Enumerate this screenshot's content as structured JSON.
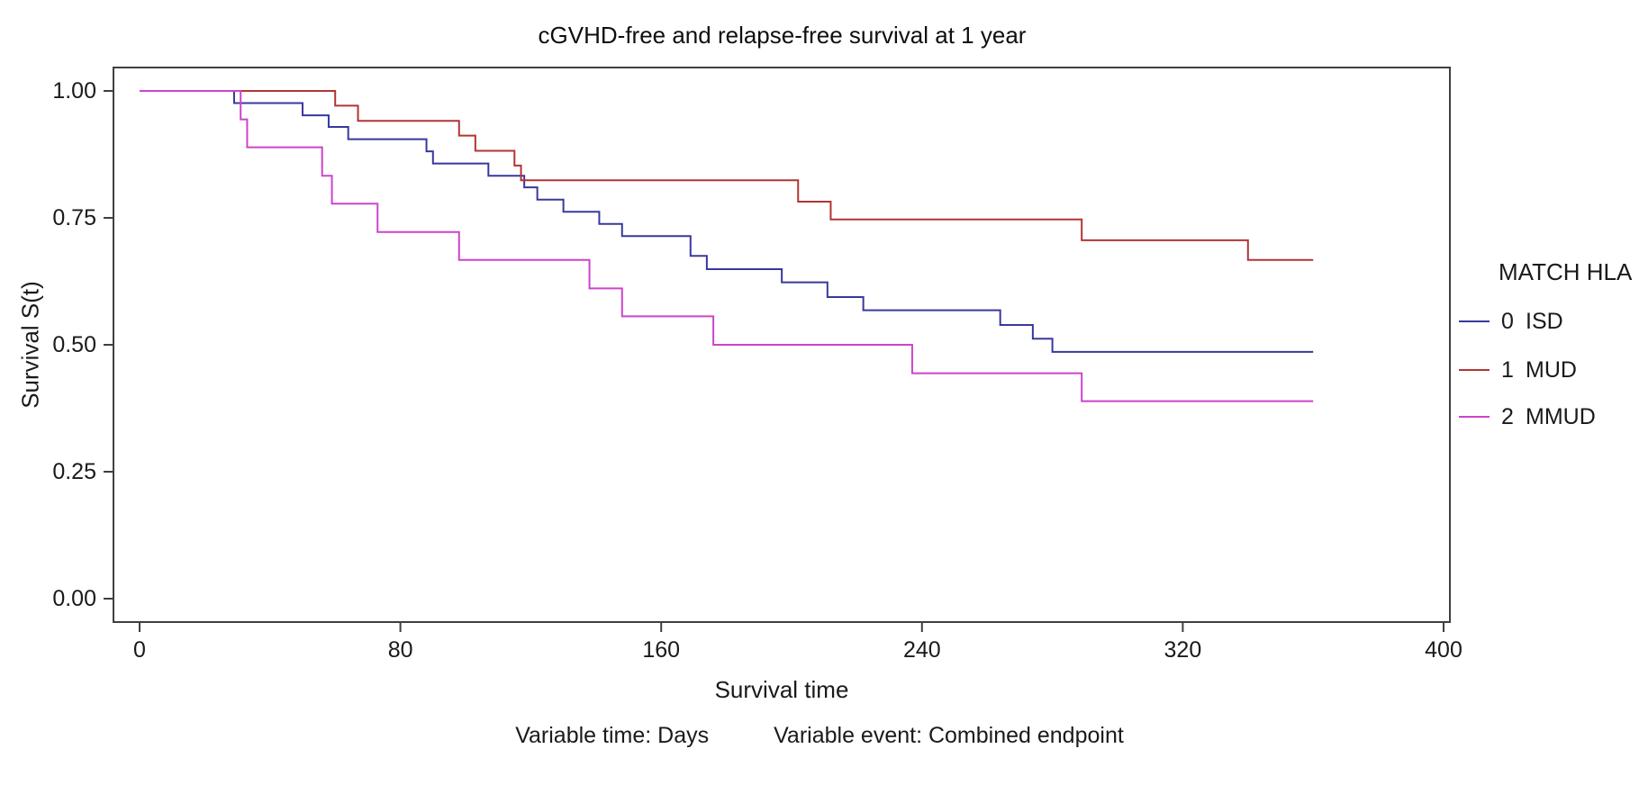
{
  "title": "cGVHD-free and relapse-free survival at 1 year",
  "footer": {
    "time_note": "Variable time: Days",
    "event_note": "Variable event: Combined endpoint"
  },
  "chart_data": {
    "type": "line",
    "subtype": "kaplan_meier_step",
    "title": "cGVHD-free and relapse-free survival at 1 year",
    "xlabel": "Survival time",
    "ylabel": "Survival S(t)",
    "xlim": [
      0,
      400
    ],
    "ylim": [
      0.0,
      1.0
    ],
    "grid": false,
    "xticks": [
      {
        "v": 0,
        "label": "0"
      },
      {
        "v": 80,
        "label": "80"
      },
      {
        "v": 160,
        "label": "160"
      },
      {
        "v": 240,
        "label": "240"
      },
      {
        "v": 320,
        "label": "320"
      },
      {
        "v": 400,
        "label": "400"
      }
    ],
    "yticks": [
      {
        "v": 1.0,
        "label": "1.00"
      },
      {
        "v": 0.75,
        "label": "0.75"
      },
      {
        "v": 0.5,
        "label": "0.50"
      },
      {
        "v": 0.25,
        "label": "0.25"
      },
      {
        "v": 0.0,
        "label": "0.00"
      }
    ],
    "legend": {
      "title": "MATCH HLA",
      "position": "right",
      "entries": [
        {
          "value": "0",
          "label": "ISD",
          "color": "#38389e"
        },
        {
          "value": "1",
          "label": "MUD",
          "color": "#b23434"
        },
        {
          "value": "2",
          "label": "MMUD",
          "color": "#cc44cc"
        }
      ]
    },
    "series": [
      {
        "name": "ISD",
        "group_value": "0",
        "color": "#38389e",
        "points": [
          [
            0,
            1.0
          ],
          [
            29,
            0.976
          ],
          [
            50,
            0.952
          ],
          [
            58,
            0.929
          ],
          [
            64,
            0.905
          ],
          [
            88,
            0.881
          ],
          [
            90,
            0.857
          ],
          [
            107,
            0.833
          ],
          [
            118,
            0.81
          ],
          [
            122,
            0.786
          ],
          [
            130,
            0.762
          ],
          [
            141,
            0.738
          ],
          [
            148,
            0.714
          ],
          [
            169,
            0.675
          ],
          [
            174,
            0.649
          ],
          [
            197,
            0.623
          ],
          [
            211,
            0.594
          ],
          [
            222,
            0.568
          ],
          [
            264,
            0.539
          ],
          [
            274,
            0.512
          ],
          [
            280,
            0.486
          ],
          [
            360,
            0.486
          ]
        ]
      },
      {
        "name": "MUD",
        "group_value": "1",
        "color": "#b23434",
        "points": [
          [
            0,
            1.0
          ],
          [
            60,
            0.971
          ],
          [
            67,
            0.941
          ],
          [
            98,
            0.912
          ],
          [
            103,
            0.882
          ],
          [
            115,
            0.853
          ],
          [
            117,
            0.824
          ],
          [
            202,
            0.782
          ],
          [
            212,
            0.747
          ],
          [
            289,
            0.706
          ],
          [
            340,
            0.667
          ],
          [
            360,
            0.667
          ]
        ]
      },
      {
        "name": "MMUD",
        "group_value": "2",
        "color": "#cc44cc",
        "points": [
          [
            0,
            1.0
          ],
          [
            31,
            0.944
          ],
          [
            33,
            0.889
          ],
          [
            56,
            0.833
          ],
          [
            59,
            0.778
          ],
          [
            73,
            0.722
          ],
          [
            98,
            0.667
          ],
          [
            138,
            0.611
          ],
          [
            148,
            0.556
          ],
          [
            176,
            0.5
          ],
          [
            237,
            0.444
          ],
          [
            289,
            0.389
          ],
          [
            360,
            0.389
          ]
        ]
      }
    ]
  }
}
